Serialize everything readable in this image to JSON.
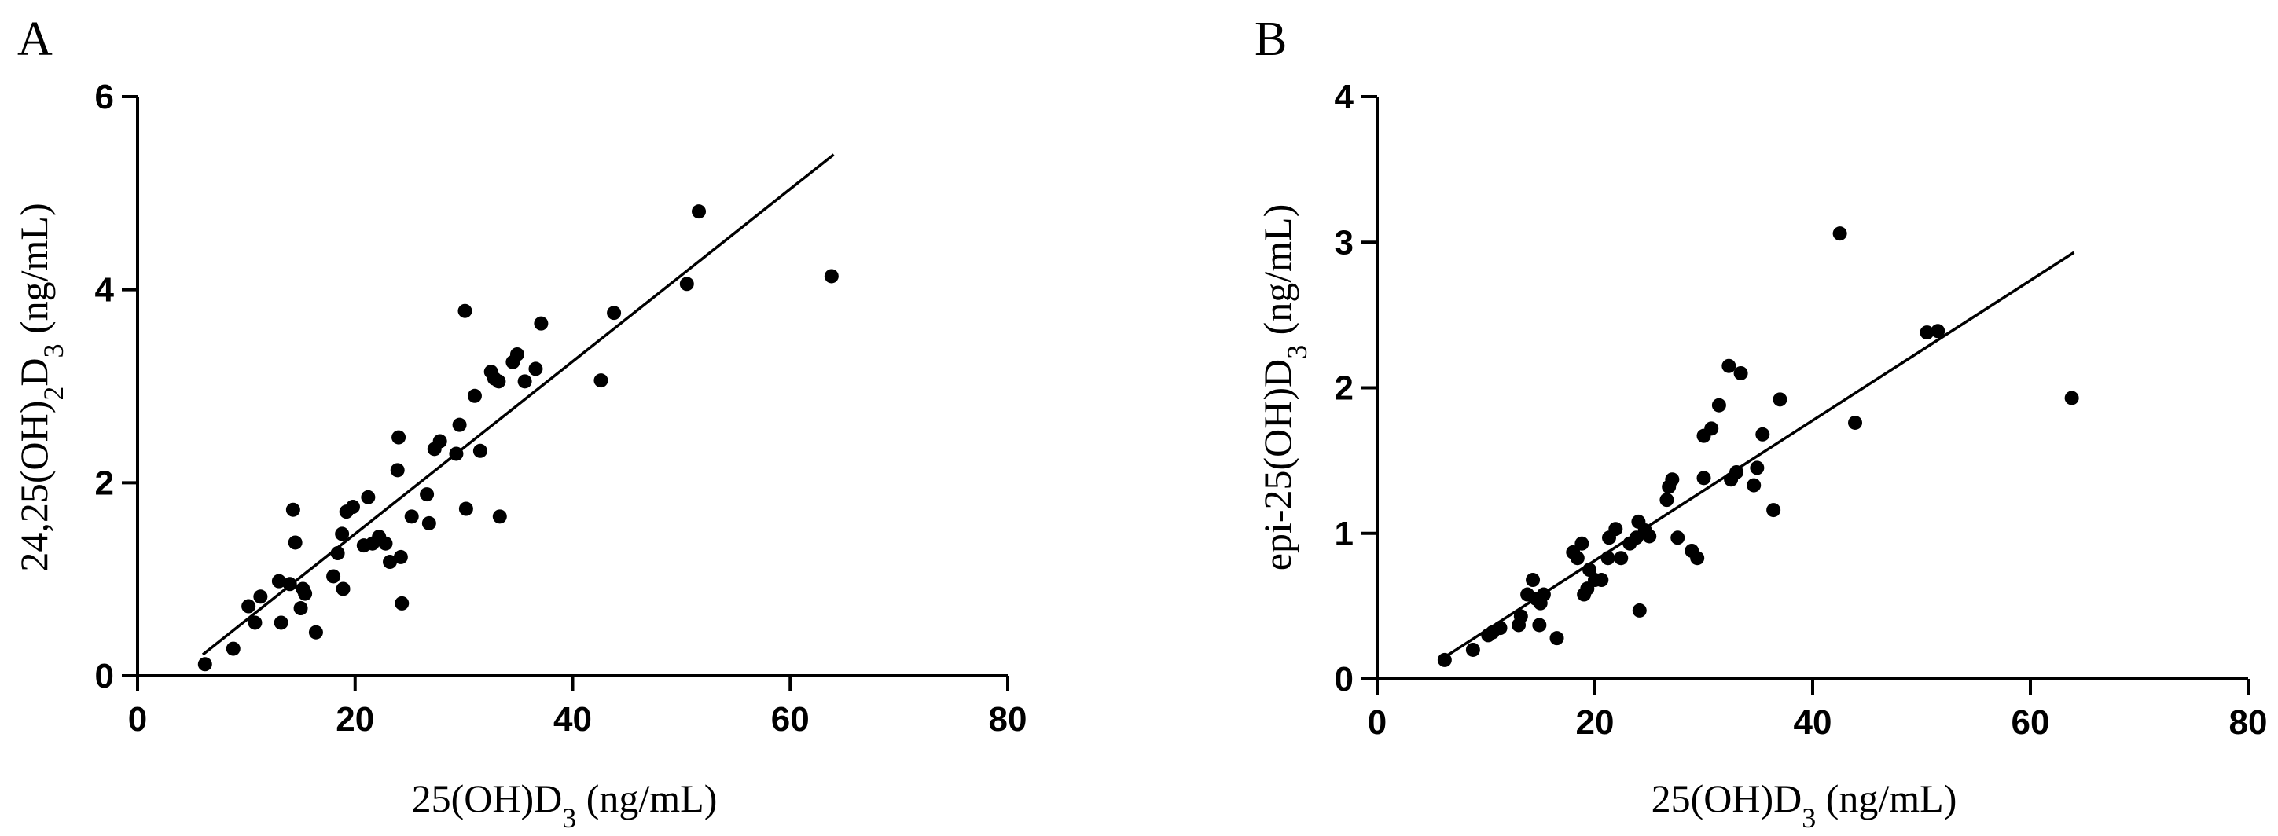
{
  "chart_data": [
    {
      "type": "scatter",
      "panel": "A",
      "xlabel": {
        "main": "25(OH)D",
        "sub": "3",
        "unit": " (ng/mL)"
      },
      "ylabel": {
        "p1": "24,25(OH)",
        "s1": "2",
        "p2": "D",
        "s2": "3",
        "unit": " (ng/mL)"
      },
      "xlim": [
        0,
        80
      ],
      "ylim": [
        0,
        6
      ],
      "xticks": [
        0,
        20,
        40,
        60,
        80
      ],
      "yticks": [
        0,
        2,
        4,
        6
      ],
      "xtick_labels": [
        "0",
        "20",
        "40",
        "60",
        "80"
      ],
      "ytick_labels": [
        "0",
        "2",
        "4",
        "6"
      ],
      "grid": false,
      "legend": "none",
      "trendline": {
        "x": [
          6,
          64
        ],
        "y": [
          0.22,
          5.4
        ]
      },
      "points": [
        [
          6.2,
          0.12
        ],
        [
          8.8,
          0.28
        ],
        [
          10.2,
          0.72
        ],
        [
          10.8,
          0.55
        ],
        [
          11.3,
          0.82
        ],
        [
          13.0,
          0.98
        ],
        [
          13.2,
          0.55
        ],
        [
          14.0,
          0.95
        ],
        [
          14.3,
          1.72
        ],
        [
          14.5,
          1.38
        ],
        [
          15.0,
          0.7
        ],
        [
          15.2,
          0.9
        ],
        [
          15.4,
          0.85
        ],
        [
          16.4,
          0.45
        ],
        [
          18.0,
          1.03
        ],
        [
          18.4,
          1.27
        ],
        [
          18.8,
          1.47
        ],
        [
          18.9,
          0.9
        ],
        [
          19.2,
          1.7
        ],
        [
          19.8,
          1.75
        ],
        [
          20.8,
          1.35
        ],
        [
          21.2,
          1.85
        ],
        [
          21.6,
          1.37
        ],
        [
          22.2,
          1.44
        ],
        [
          22.8,
          1.37
        ],
        [
          23.2,
          1.18
        ],
        [
          23.9,
          2.13
        ],
        [
          24.0,
          2.47
        ],
        [
          24.2,
          1.23
        ],
        [
          24.3,
          0.75
        ],
        [
          25.2,
          1.65
        ],
        [
          26.6,
          1.88
        ],
        [
          26.8,
          1.58
        ],
        [
          27.3,
          2.35
        ],
        [
          27.8,
          2.43
        ],
        [
          29.3,
          2.3
        ],
        [
          29.6,
          2.6
        ],
        [
          30.1,
          3.78
        ],
        [
          30.2,
          1.73
        ],
        [
          31.0,
          2.9
        ],
        [
          31.5,
          2.33
        ],
        [
          32.5,
          3.15
        ],
        [
          32.8,
          3.08
        ],
        [
          33.2,
          3.05
        ],
        [
          33.3,
          1.65
        ],
        [
          34.5,
          3.25
        ],
        [
          34.9,
          3.33
        ],
        [
          35.6,
          3.05
        ],
        [
          36.6,
          3.18
        ],
        [
          37.1,
          3.65
        ],
        [
          42.6,
          3.06
        ],
        [
          43.8,
          3.76
        ],
        [
          50.5,
          4.06
        ],
        [
          51.6,
          4.81
        ],
        [
          63.8,
          4.14
        ]
      ]
    },
    {
      "type": "scatter",
      "panel": "B",
      "xlabel": {
        "main": "25(OH)D",
        "sub": "3",
        "unit": " (ng/mL)"
      },
      "ylabel": {
        "p1": "epi-25(OH)D",
        "s1": "3",
        "unit": " (ng/mL)"
      },
      "xlim": [
        0,
        80
      ],
      "ylim": [
        0,
        4
      ],
      "xticks": [
        0,
        20,
        40,
        60,
        80
      ],
      "yticks": [
        0,
        1,
        2,
        3,
        4
      ],
      "xtick_labels": [
        "0",
        "20",
        "40",
        "60",
        "80"
      ],
      "ytick_labels": [
        "0",
        "1",
        "2",
        "3",
        "4"
      ],
      "grid": false,
      "legend": "none",
      "trendline": {
        "x": [
          6,
          64
        ],
        "y": [
          0.14,
          2.93
        ]
      },
      "points": [
        [
          6.2,
          0.13
        ],
        [
          8.8,
          0.2
        ],
        [
          10.2,
          0.3
        ],
        [
          10.6,
          0.32
        ],
        [
          11.3,
          0.35
        ],
        [
          13.0,
          0.37
        ],
        [
          13.2,
          0.43
        ],
        [
          13.8,
          0.58
        ],
        [
          14.3,
          0.68
        ],
        [
          14.6,
          0.55
        ],
        [
          14.9,
          0.37
        ],
        [
          15.3,
          0.58
        ],
        [
          15.0,
          0.52
        ],
        [
          16.5,
          0.28
        ],
        [
          18.0,
          0.87
        ],
        [
          18.4,
          0.83
        ],
        [
          18.8,
          0.93
        ],
        [
          19.0,
          0.58
        ],
        [
          19.3,
          0.62
        ],
        [
          19.5,
          0.75
        ],
        [
          20.0,
          0.68
        ],
        [
          20.6,
          0.68
        ],
        [
          21.2,
          0.83
        ],
        [
          21.3,
          0.97
        ],
        [
          21.9,
          1.03
        ],
        [
          22.4,
          0.83
        ],
        [
          23.2,
          0.93
        ],
        [
          23.8,
          0.97
        ],
        [
          24.0,
          1.08
        ],
        [
          24.1,
          0.47
        ],
        [
          24.6,
          1.02
        ],
        [
          25.0,
          0.98
        ],
        [
          26.6,
          1.23
        ],
        [
          26.8,
          1.32
        ],
        [
          27.1,
          1.37
        ],
        [
          27.6,
          0.97
        ],
        [
          28.9,
          0.88
        ],
        [
          29.4,
          0.83
        ],
        [
          30.0,
          1.38
        ],
        [
          30.0,
          1.67
        ],
        [
          30.7,
          1.72
        ],
        [
          31.4,
          1.88
        ],
        [
          32.3,
          2.15
        ],
        [
          32.5,
          1.37
        ],
        [
          33.0,
          1.42
        ],
        [
          33.4,
          2.1
        ],
        [
          34.6,
          1.33
        ],
        [
          34.9,
          1.45
        ],
        [
          35.4,
          1.68
        ],
        [
          36.4,
          1.16
        ],
        [
          37.0,
          1.92
        ],
        [
          42.5,
          3.06
        ],
        [
          43.9,
          1.76
        ],
        [
          50.5,
          2.38
        ],
        [
          51.5,
          2.39
        ],
        [
          63.8,
          1.93
        ]
      ]
    }
  ]
}
